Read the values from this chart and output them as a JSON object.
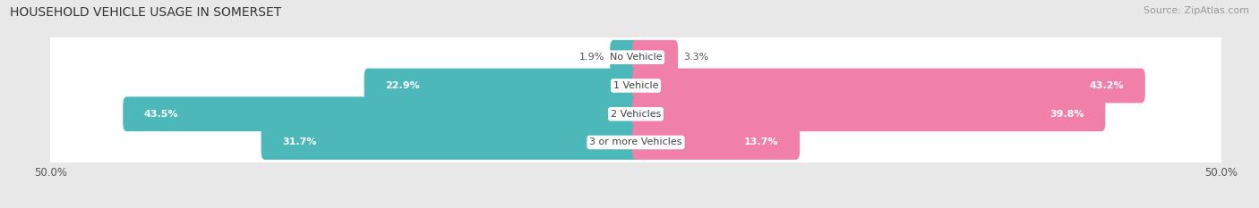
{
  "title": "HOUSEHOLD VEHICLE USAGE IN SOMERSET",
  "source": "Source: ZipAtlas.com",
  "categories": [
    "No Vehicle",
    "1 Vehicle",
    "2 Vehicles",
    "3 or more Vehicles"
  ],
  "owner_values": [
    1.9,
    22.9,
    43.5,
    31.7
  ],
  "renter_values": [
    3.3,
    43.2,
    39.8,
    13.7
  ],
  "owner_color": "#4db8ba",
  "renter_color": "#f080a8",
  "xlim": [
    -50,
    50
  ],
  "background_color": "#e8e8e8",
  "row_bg_color": "#f0f0f0",
  "title_fontsize": 10,
  "source_fontsize": 8,
  "value_fontsize": 8,
  "cat_fontsize": 8
}
